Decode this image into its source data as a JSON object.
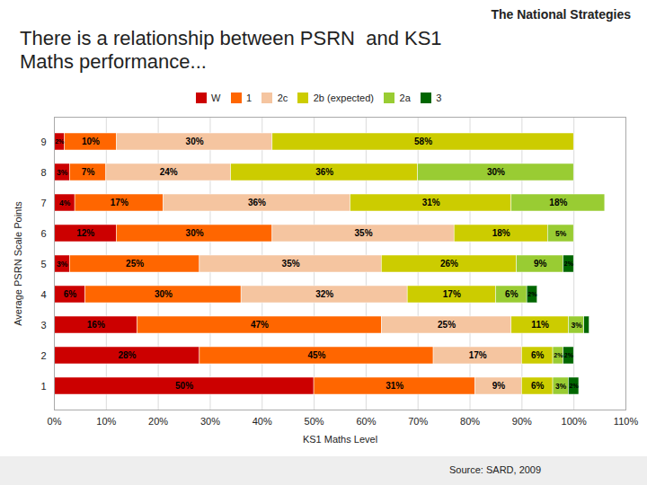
{
  "chart_data": {
    "type": "bar",
    "orientation": "horizontal",
    "stacked": true,
    "title": "There is a relationship between PSRN  and KS1",
    "subtitle": "Maths performance...",
    "annotations": [
      "The National Strategies",
      "Source: SARD, 2009"
    ],
    "xlabel": "KS1 Maths Level",
    "ylabel": "Average PSRN Scale Points",
    "categories": [
      "1",
      "2",
      "3",
      "4",
      "5",
      "6",
      "7",
      "8",
      "9"
    ],
    "series": [
      {
        "name": "W",
        "color": "#cc0000",
        "values": [
          50,
          28,
          16,
          6,
          3,
          12,
          4,
          3,
          2
        ],
        "value_labels": [
          "50%",
          "28%",
          "16%",
          "6%",
          "3%",
          "12%",
          "4%",
          "3%",
          "2%"
        ]
      },
      {
        "name": "1",
        "color": "#ff6600",
        "values": [
          31,
          45,
          47,
          30,
          25,
          30,
          17,
          7,
          10
        ],
        "value_labels": [
          "31%",
          "45%",
          "47%",
          "30%",
          "25%",
          "30%",
          "17%",
          "7%",
          "10%"
        ]
      },
      {
        "name": "2c",
        "color": "#f5c5a0",
        "values": [
          9,
          17,
          25,
          32,
          35,
          35,
          36,
          24,
          30
        ],
        "value_labels": [
          "9%",
          "17%",
          "25%",
          "32%",
          "35%",
          "35%",
          "36%",
          "24%",
          "30%"
        ]
      },
      {
        "name": "2b (expected)",
        "color": "#cccc00",
        "values": [
          6,
          6,
          11,
          17,
          26,
          18,
          31,
          36,
          58
        ],
        "value_labels": [
          "6%",
          "6%",
          "11%",
          "17%",
          "26%",
          "18%",
          "31%",
          "36%",
          "58%"
        ]
      },
      {
        "name": "2a",
        "color": "#99cc33",
        "values": [
          3,
          2,
          3,
          6,
          9,
          5,
          18,
          30,
          0
        ],
        "value_labels": [
          "3%",
          "2%",
          "3%",
          "6%",
          "9%",
          "5%",
          "18%",
          "30%",
          null
        ]
      },
      {
        "name": "3",
        "color": "#006600",
        "values": [
          2,
          2,
          1,
          2,
          2,
          0,
          0,
          0,
          0
        ],
        "value_labels": [
          "2%",
          "2%",
          null,
          "2%",
          "2%",
          null,
          null,
          null,
          null
        ]
      }
    ],
    "xlim": [
      0,
      110
    ],
    "xticks": [
      {
        "value": 0,
        "label": "0%"
      },
      {
        "value": 10,
        "label": "10%"
      },
      {
        "value": 20,
        "label": "20%"
      },
      {
        "value": 30,
        "label": "30%"
      },
      {
        "value": 40,
        "label": "40%"
      },
      {
        "value": 50,
        "label": "50%"
      },
      {
        "value": 60,
        "label": "60%"
      },
      {
        "value": 70,
        "label": "70%"
      },
      {
        "value": 80,
        "label": "80%"
      },
      {
        "value": 90,
        "label": "90%"
      },
      {
        "value": 100,
        "label": "100%"
      },
      {
        "value": 110,
        "label": "110%"
      }
    ],
    "grid": true,
    "legend": "top",
    "data_labels": true
  }
}
